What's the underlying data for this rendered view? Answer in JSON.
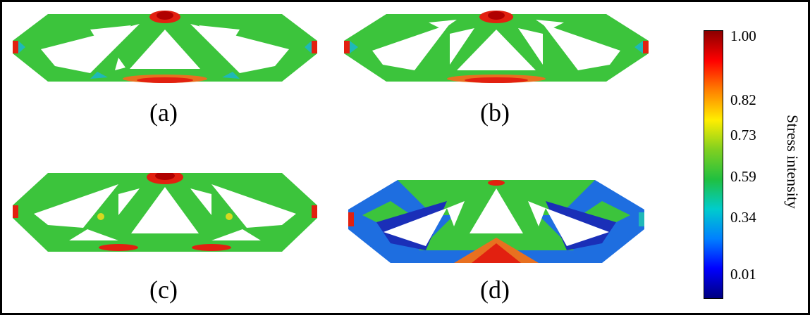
{
  "panels": [
    {
      "label": "(a)"
    },
    {
      "label": "(b)"
    },
    {
      "label": "(c)"
    },
    {
      "label": "(d)"
    }
  ],
  "colorbar": {
    "title": "Stress intensity",
    "ticks": [
      "1.00",
      "0.82",
      "0.73",
      "0.59",
      "0.34",
      "0.01"
    ],
    "colors": [
      "#00007f",
      "#0000ff",
      "#0080ff",
      "#00cccc",
      "#20c040",
      "#80d020",
      "#ffee00",
      "#ff8000",
      "#ff0000",
      "#8b0000"
    ]
  },
  "palette": {
    "green": "#3cc43c",
    "blue": "#1e6ee0",
    "darkblue": "#1a2fb8",
    "red": "#e22010",
    "darkred": "#b00000",
    "yellow": "#d8d820",
    "cyan": "#1fb8b8"
  }
}
